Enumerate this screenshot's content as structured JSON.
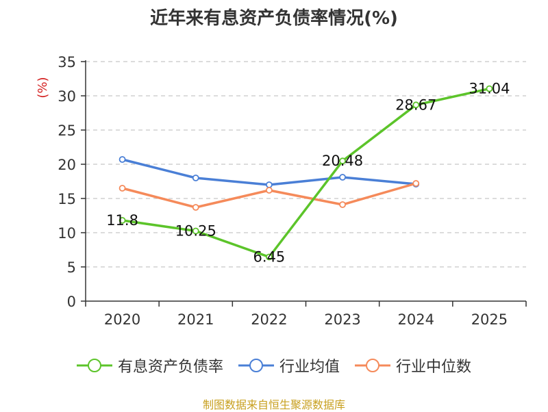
{
  "chart_data": {
    "type": "line",
    "title": "近年来有息资产负债率情况(%)",
    "ylabel": "(%)",
    "categories": [
      "2020",
      "2021",
      "2022",
      "2023",
      "2024",
      "2025"
    ],
    "ylim": [
      0,
      35
    ],
    "yticks": [
      0,
      5,
      10,
      15,
      20,
      25,
      30,
      35
    ],
    "grid": true,
    "legend_position": "bottom",
    "series": [
      {
        "name": "有息资产负债率",
        "color": "#5cc42a",
        "values": [
          11.8,
          10.25,
          6.45,
          20.48,
          28.67,
          31.04
        ],
        "labels": [
          "11.8",
          "10.25",
          "6.45",
          "20.48",
          "28.67",
          "31.04"
        ]
      },
      {
        "name": "行业均值",
        "color": "#4a7fd6",
        "values": [
          20.7,
          18.0,
          17.0,
          18.1,
          17.1,
          null
        ]
      },
      {
        "name": "行业中位数",
        "color": "#f58a5a",
        "values": [
          16.5,
          13.7,
          16.2,
          14.1,
          17.2,
          null
        ]
      }
    ]
  },
  "source_note": "制图数据来自恒生聚源数据库"
}
